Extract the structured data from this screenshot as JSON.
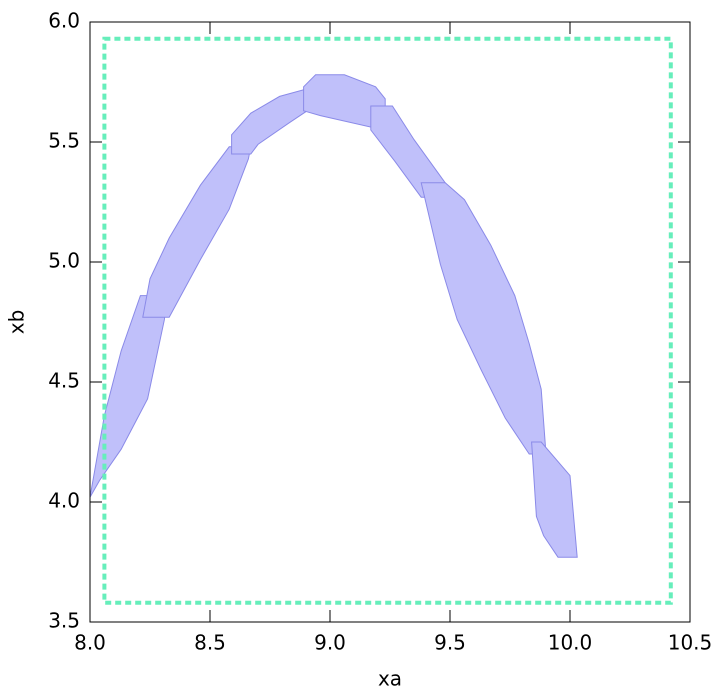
{
  "chart_data": {
    "type": "region",
    "xlabel": "xa",
    "ylabel": "xb",
    "xlim": [
      8.0,
      10.5
    ],
    "ylim": [
      3.5,
      6.0
    ],
    "xticks": [
      {
        "value": 8.0,
        "label": "8.0"
      },
      8.5,
      {
        "value": 9.0,
        "label": "9.0"
      },
      9.5,
      {
        "value": 10.0,
        "label": "10.0"
      },
      10.5
    ],
    "yticks": [
      3.5,
      {
        "value": 4.0,
        "label": "4.0"
      },
      4.5,
      {
        "value": 5.0,
        "label": "5.0"
      },
      5.5,
      {
        "value": 6.0,
        "label": "6.0"
      }
    ],
    "color": "#c0c0fa",
    "edge_color": "#8a8ae8",
    "series": [
      {
        "x": [
          8.0,
          8.06,
          8.13,
          8.21,
          8.32,
          8.31,
          8.24,
          8.13,
          8.04
        ],
        "y": [
          4.02,
          4.36,
          4.63,
          4.86,
          4.86,
          4.76,
          4.43,
          4.22,
          4.09
        ]
      },
      {
        "x": [
          8.22,
          8.25,
          8.33,
          8.46,
          8.58,
          8.67,
          8.66,
          8.58,
          8.46,
          8.33
        ],
        "y": [
          4.77,
          4.93,
          5.1,
          5.32,
          5.48,
          5.48,
          5.43,
          5.22,
          5.01,
          4.77
        ]
      },
      {
        "x": [
          8.59,
          8.59,
          8.67,
          8.79,
          8.9,
          8.95,
          8.95,
          8.83,
          8.7,
          8.67
        ],
        "y": [
          5.45,
          5.53,
          5.62,
          5.69,
          5.72,
          5.71,
          5.66,
          5.58,
          5.49,
          5.45
        ]
      },
      {
        "x": [
          8.89,
          8.89,
          8.94,
          9.06,
          9.19,
          9.23,
          9.23,
          9.18,
          8.96
        ],
        "y": [
          5.63,
          5.73,
          5.78,
          5.78,
          5.73,
          5.68,
          5.65,
          5.56,
          5.61
        ]
      },
      {
        "x": [
          9.17,
          9.17,
          9.26,
          9.35,
          9.48,
          9.48,
          9.38,
          9.27
        ],
        "y": [
          5.55,
          5.65,
          5.65,
          5.51,
          5.33,
          5.27,
          5.27,
          5.42
        ]
      },
      {
        "x": [
          9.38,
          9.48,
          9.56,
          9.67,
          9.77,
          9.83,
          9.88,
          9.9,
          9.83,
          9.73,
          9.63,
          9.53,
          9.46
        ],
        "y": [
          5.33,
          5.33,
          5.26,
          5.07,
          4.86,
          4.66,
          4.47,
          4.2,
          4.2,
          4.35,
          4.55,
          4.76,
          4.99
        ]
      },
      {
        "x": [
          9.84,
          9.88,
          10.0,
          10.03,
          9.95,
          9.89,
          9.86
        ],
        "y": [
          4.25,
          4.25,
          4.11,
          3.77,
          3.77,
          3.86,
          3.94
        ]
      }
    ],
    "box_x": [
      8.06,
      10.42
    ],
    "box_y": [
      3.58,
      5.93
    ],
    "box_color": "#66eebb"
  }
}
